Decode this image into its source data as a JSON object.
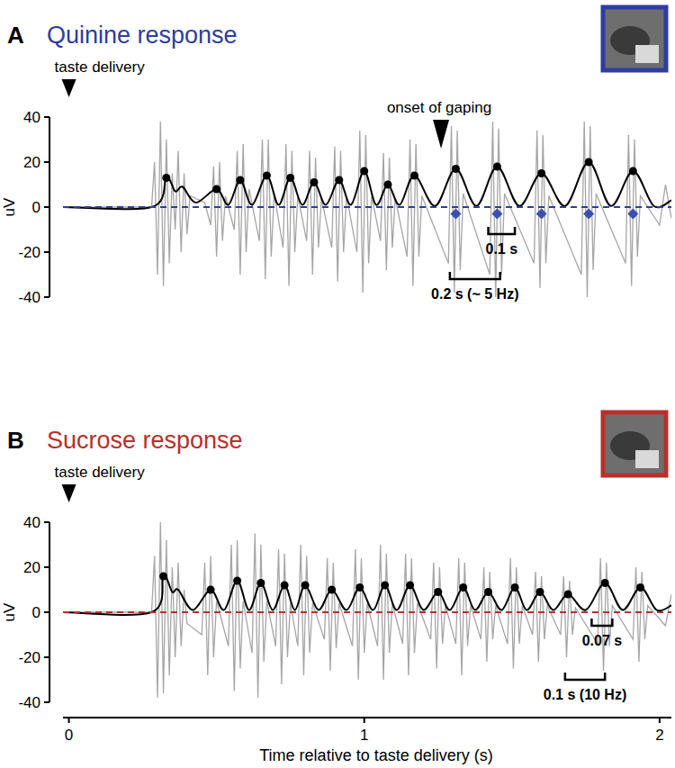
{
  "chart_data": [
    {
      "type": "line",
      "label": "A",
      "title": "Quinine response",
      "ylabel": "uV",
      "xlim": [
        -0.02,
        2.04
      ],
      "ylim": [
        -40,
        40
      ],
      "yticks": [
        -40,
        -20,
        0,
        20,
        40
      ],
      "tick_labels": "y",
      "series": [
        {
          "type": "line",
          "color": "#a6a6a6",
          "x": [
            -0.02,
            0.28,
            0.29,
            0.3,
            0.31,
            0.32,
            0.33,
            0.34,
            0.35,
            0.36,
            0.37,
            0.38,
            0.39,
            0.4,
            0.41,
            0.46,
            0.48,
            0.49,
            0.5,
            0.51,
            0.52,
            0.53,
            0.56,
            0.57,
            0.58,
            0.59,
            0.6,
            0.61,
            0.645,
            0.655,
            0.665,
            0.675,
            0.685,
            0.695,
            0.725,
            0.735,
            0.745,
            0.755,
            0.765,
            0.775,
            0.805,
            0.815,
            0.825,
            0.835,
            0.845,
            0.855,
            0.89,
            0.9,
            0.91,
            0.92,
            0.93,
            0.94,
            0.975,
            0.985,
            0.995,
            1.005,
            1.015,
            1.025,
            1.055,
            1.065,
            1.075,
            1.085,
            1.095,
            1.105,
            1.145,
            1.155,
            1.165,
            1.175,
            1.185,
            1.195,
            1.285,
            1.295,
            1.305,
            1.315,
            1.325,
            1.335,
            1.425,
            1.435,
            1.445,
            1.455,
            1.465,
            1.475,
            1.575,
            1.585,
            1.595,
            1.605,
            1.615,
            1.625,
            1.735,
            1.745,
            1.755,
            1.765,
            1.775,
            1.785,
            1.885,
            1.895,
            1.905,
            1.915,
            1.925,
            1.935,
            2.0,
            2.02,
            2.04
          ],
          "values": [
            0,
            0,
            20,
            -30,
            38,
            -35,
            30,
            -25,
            15,
            -10,
            25,
            -20,
            15,
            -12,
            5,
            2,
            -8,
            18,
            -22,
            20,
            -15,
            5,
            -10,
            25,
            -30,
            28,
            -20,
            8,
            -15,
            30,
            -32,
            30,
            -22,
            6,
            -18,
            28,
            -35,
            25,
            -20,
            5,
            -15,
            25,
            -30,
            22,
            -18,
            4,
            -18,
            27,
            -33,
            25,
            -20,
            5,
            -20,
            34,
            -38,
            32,
            -25,
            5,
            -15,
            24,
            -28,
            22,
            -18,
            4,
            -22,
            30,
            -35,
            28,
            -22,
            5,
            -25,
            36,
            -38,
            34,
            -28,
            6,
            -30,
            38,
            -40,
            35,
            -30,
            6,
            -25,
            34,
            -36,
            32,
            -25,
            5,
            -30,
            38,
            -40,
            36,
            -28,
            6,
            -25,
            32,
            -35,
            30,
            -22,
            5,
            -8,
            10,
            -5
          ]
        },
        {
          "type": "line",
          "color": "#000000",
          "x": [
            -0.02,
            0.28,
            0.33,
            0.36,
            0.385,
            0.43,
            0.5,
            0.54,
            0.58,
            0.62,
            0.67,
            0.71,
            0.75,
            0.79,
            0.83,
            0.87,
            0.915,
            0.955,
            1.0,
            1.04,
            1.08,
            1.12,
            1.17,
            1.24,
            1.31,
            1.38,
            1.45,
            1.525,
            1.6,
            1.68,
            1.76,
            1.835,
            1.91,
            1.98,
            2.04
          ],
          "values": [
            0,
            0,
            13,
            7,
            9,
            2,
            8,
            1,
            12,
            1,
            14,
            1,
            13,
            1,
            11,
            1,
            12,
            1,
            16,
            1,
            10,
            1,
            14,
            0.5,
            17,
            0.5,
            18,
            0.5,
            15,
            0.5,
            20,
            0.5,
            16,
            0.5,
            3
          ]
        },
        {
          "type": "scatter",
          "color": "#000000",
          "marker": "circle",
          "x": [
            0.33,
            0.5,
            0.58,
            0.67,
            0.75,
            0.83,
            0.915,
            1.0,
            1.08,
            1.17,
            1.31,
            1.45,
            1.6,
            1.76,
            1.91
          ],
          "values": [
            13,
            8,
            12,
            14,
            13,
            11,
            12,
            16,
            10,
            14,
            17,
            18,
            15,
            20,
            16
          ]
        },
        {
          "type": "scatter",
          "color": "#3a50b0",
          "marker": "diamond",
          "x": [
            1.31,
            1.45,
            1.6,
            1.76,
            1.91
          ],
          "values": [
            -3,
            -3,
            -3,
            -3,
            -3
          ]
        },
        {
          "type": "line",
          "color": "#2e3d9e",
          "line_style": "dashed",
          "x": [
            -0.02,
            2.04
          ],
          "values": [
            0,
            0
          ]
        }
      ],
      "annotations": [
        {
          "text": "taste delivery",
          "x": 0
        },
        {
          "text": "onset of gaping",
          "x": 1.26,
          "y": 26
        }
      ],
      "brackets": [
        {
          "text": "0.1 s",
          "x0": 1.42,
          "x1": 1.51,
          "y": -12
        },
        {
          "text": "0.2 s (~ 5 Hz)",
          "x0": 1.29,
          "x1": 1.46,
          "y": -32
        }
      ]
    },
    {
      "type": "line",
      "label": "B",
      "title": "Sucrose response",
      "ylabel": "uV",
      "xlabel": "Time relative to taste delivery (s)",
      "xlim": [
        -0.02,
        2.04
      ],
      "ylim": [
        -40,
        40
      ],
      "yticks": [
        -40,
        -20,
        0,
        20,
        40
      ],
      "xticks": [
        0,
        1,
        2
      ],
      "series": [
        {
          "type": "line",
          "color": "#a6a6a6",
          "x": [
            -0.02,
            0.28,
            0.29,
            0.3,
            0.31,
            0.32,
            0.33,
            0.34,
            0.35,
            0.36,
            0.37,
            0.38,
            0.39,
            0.4,
            0.45,
            0.46,
            0.47,
            0.48,
            0.49,
            0.5,
            0.54,
            0.55,
            0.56,
            0.57,
            0.58,
            0.59,
            0.62,
            0.63,
            0.64,
            0.65,
            0.66,
            0.67,
            0.7,
            0.71,
            0.72,
            0.73,
            0.74,
            0.75,
            0.775,
            0.785,
            0.795,
            0.805,
            0.815,
            0.825,
            0.865,
            0.875,
            0.885,
            0.895,
            0.905,
            0.915,
            0.96,
            0.97,
            0.98,
            0.99,
            1.0,
            1.01,
            1.045,
            1.055,
            1.065,
            1.075,
            1.085,
            1.095,
            1.13,
            1.14,
            1.15,
            1.16,
            1.17,
            1.18,
            1.225,
            1.235,
            1.245,
            1.255,
            1.265,
            1.275,
            1.31,
            1.32,
            1.33,
            1.34,
            1.35,
            1.36,
            1.395,
            1.405,
            1.415,
            1.425,
            1.435,
            1.445,
            1.485,
            1.495,
            1.505,
            1.515,
            1.525,
            1.535,
            1.57,
            1.58,
            1.59,
            1.6,
            1.61,
            1.62,
            1.665,
            1.675,
            1.685,
            1.695,
            1.705,
            1.715,
            1.79,
            1.8,
            1.81,
            1.82,
            1.83,
            1.84,
            1.91,
            1.92,
            1.93,
            1.94,
            1.95,
            1.96,
            2.02,
            2.04
          ],
          "values": [
            0,
            0,
            25,
            -38,
            40,
            -36,
            32,
            -28,
            20,
            -20,
            22,
            -15,
            10,
            -5,
            -10,
            22,
            -28,
            25,
            -20,
            5,
            -15,
            30,
            -35,
            32,
            -25,
            5,
            -18,
            35,
            -38,
            30,
            -22,
            5,
            -15,
            28,
            -32,
            26,
            -20,
            4,
            -15,
            30,
            -28,
            25,
            -18,
            4,
            -12,
            24,
            -26,
            22,
            -16,
            4,
            -15,
            28,
            -30,
            24,
            -18,
            4,
            -15,
            30,
            -30,
            26,
            -18,
            4,
            -14,
            26,
            -28,
            24,
            -18,
            4,
            -12,
            22,
            -25,
            20,
            -14,
            3,
            -14,
            24,
            -28,
            22,
            -15,
            3,
            -12,
            20,
            -22,
            18,
            -12,
            3,
            -14,
            24,
            -25,
            20,
            -14,
            3,
            -10,
            18,
            -22,
            16,
            -12,
            3,
            -10,
            16,
            -20,
            14,
            -10,
            2,
            -14,
            24,
            -26,
            22,
            -15,
            3,
            -12,
            20,
            -22,
            18,
            -12,
            3,
            -6,
            8
          ]
        },
        {
          "type": "line",
          "color": "#000000",
          "x": [
            -0.02,
            0.28,
            0.32,
            0.35,
            0.37,
            0.42,
            0.48,
            0.525,
            0.57,
            0.61,
            0.65,
            0.69,
            0.73,
            0.765,
            0.8,
            0.845,
            0.89,
            0.94,
            0.985,
            1.03,
            1.07,
            1.11,
            1.155,
            1.2,
            1.25,
            1.29,
            1.335,
            1.375,
            1.42,
            1.465,
            1.51,
            1.55,
            1.595,
            1.64,
            1.69,
            1.75,
            1.815,
            1.875,
            1.935,
            1.99,
            2.04
          ],
          "values": [
            0,
            0,
            16,
            9,
            10,
            1,
            10,
            1,
            14,
            1,
            13,
            1,
            12,
            1,
            12,
            1,
            10,
            1,
            11,
            1,
            12,
            1,
            12,
            1,
            9,
            1,
            11,
            1,
            9,
            1,
            11,
            1,
            9,
            1,
            8,
            1,
            13,
            1,
            11,
            1,
            3
          ]
        },
        {
          "type": "scatter",
          "color": "#000000",
          "marker": "circle",
          "x": [
            0.32,
            0.48,
            0.57,
            0.65,
            0.73,
            0.8,
            0.89,
            0.985,
            1.07,
            1.155,
            1.25,
            1.335,
            1.42,
            1.51,
            1.595,
            1.69,
            1.815,
            1.935
          ],
          "values": [
            16,
            10,
            14,
            13,
            12,
            12,
            10,
            11,
            12,
            12,
            9,
            11,
            9,
            11,
            9,
            8,
            13,
            11
          ]
        },
        {
          "type": "line",
          "color": "#b8302c",
          "line_style": "dashed",
          "x": [
            -0.02,
            2.04
          ],
          "values": [
            0,
            0
          ]
        }
      ],
      "annotations": [
        {
          "text": "taste delivery",
          "x": 0
        }
      ],
      "brackets": [
        {
          "text": "0.07 s",
          "x0": 1.77,
          "x1": 1.84,
          "y": -6
        },
        {
          "text": "0.1 s (10 Hz)",
          "x0": 1.68,
          "x1": 1.815,
          "y": -30
        }
      ]
    }
  ]
}
